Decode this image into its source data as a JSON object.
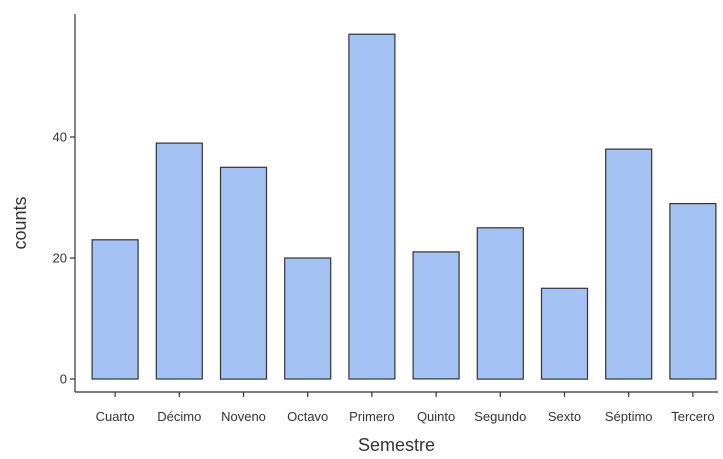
{
  "chart_data": {
    "type": "bar",
    "title": "",
    "xlabel": "Semestre",
    "ylabel": "counts",
    "categories": [
      "Cuarto",
      "Décimo",
      "Noveno",
      "Octavo",
      "Primero",
      "Quinto",
      "Segundo",
      "Sexto",
      "Séptimo",
      "Tercero"
    ],
    "values": [
      23,
      39,
      35,
      20,
      57,
      21,
      25,
      15,
      38,
      29
    ],
    "ylim": [
      0,
      60
    ],
    "yticks": [
      0,
      20,
      40
    ],
    "grid": false,
    "legend": "none",
    "bar_color": "#a4c2f4",
    "bar_border_color": "#333333"
  }
}
